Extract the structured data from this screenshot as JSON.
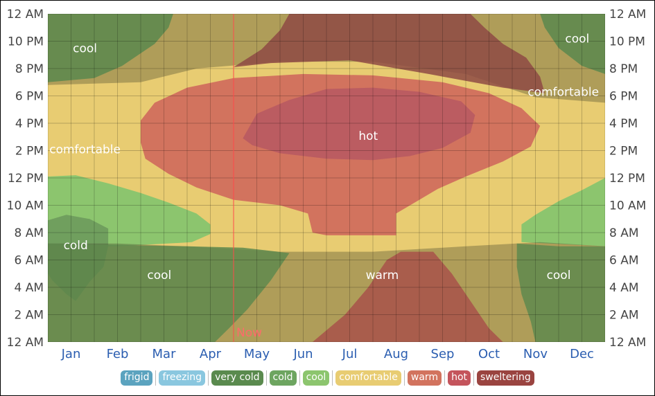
{
  "chart_data": {
    "type": "area",
    "title": "",
    "xlabel": "",
    "ylabel": "",
    "x_categories": [
      "Jan",
      "Feb",
      "Mar",
      "Apr",
      "May",
      "Jun",
      "Jul",
      "Aug",
      "Sep",
      "Oct",
      "Nov",
      "Dec"
    ],
    "y_ticks_left": [
      "12 AM",
      "2 AM",
      "4 AM",
      "6 AM",
      "8 AM",
      "10 AM",
      "12 PM",
      "2 PM",
      "4 PM",
      "6 PM",
      "8 PM",
      "10 PM",
      "12 AM"
    ],
    "y_ticks_right": [
      "12 AM",
      "2 AM",
      "4 AM",
      "6 AM",
      "8 AM",
      "10 AM",
      "12 PM",
      "2 PM",
      "4 PM",
      "6 PM",
      "8 PM",
      "10 PM",
      "12 AM"
    ],
    "y_range_hours": [
      0,
      24
    ],
    "grid": true,
    "now_marker": {
      "label": "Now",
      "month_position": 4.0
    },
    "region_labels": [
      {
        "text": "cool",
        "month": 0.8,
        "hour": 21.5
      },
      {
        "text": "cool",
        "month": 11.4,
        "hour": 22.2
      },
      {
        "text": "comfortable",
        "month": 11.1,
        "hour": 18.3
      },
      {
        "text": "hot",
        "month": 6.9,
        "hour": 15.1
      },
      {
        "text": "comfortable",
        "month": 0.8,
        "hour": 14.1
      },
      {
        "text": "cold",
        "month": 0.6,
        "hour": 7.1
      },
      {
        "text": "cool",
        "month": 2.4,
        "hour": 4.9
      },
      {
        "text": "warm",
        "month": 7.2,
        "hour": 4.9
      },
      {
        "text": "cool",
        "month": 11.0,
        "hour": 4.9
      }
    ],
    "legend": [
      {
        "label": "frigid",
        "color": "#5ba3bf"
      },
      {
        "label": "freezing",
        "color": "#8ac7df"
      },
      {
        "label": "very cold",
        "color": "#5a8a4e"
      },
      {
        "label": "cold",
        "color": "#6da560"
      },
      {
        "label": "cool",
        "color": "#8cc56e"
      },
      {
        "label": "comfortable",
        "color": "#e8cc72"
      },
      {
        "label": "warm",
        "color": "#d2735e"
      },
      {
        "label": "hot",
        "color": "#c4545c"
      },
      {
        "label": "sweltering",
        "color": "#9a4440"
      }
    ],
    "band_colors": {
      "cool": "#8cc56e",
      "cool_night": "#5f8a4e",
      "cold": "#6d9a5c",
      "comfortable": "#e8cc72",
      "comfortable_night": "#b9a35c",
      "warm": "#d2735e",
      "warm_night": "#a9574a",
      "hot": "#b85a62",
      "hot_night": "#8e4a44"
    }
  }
}
